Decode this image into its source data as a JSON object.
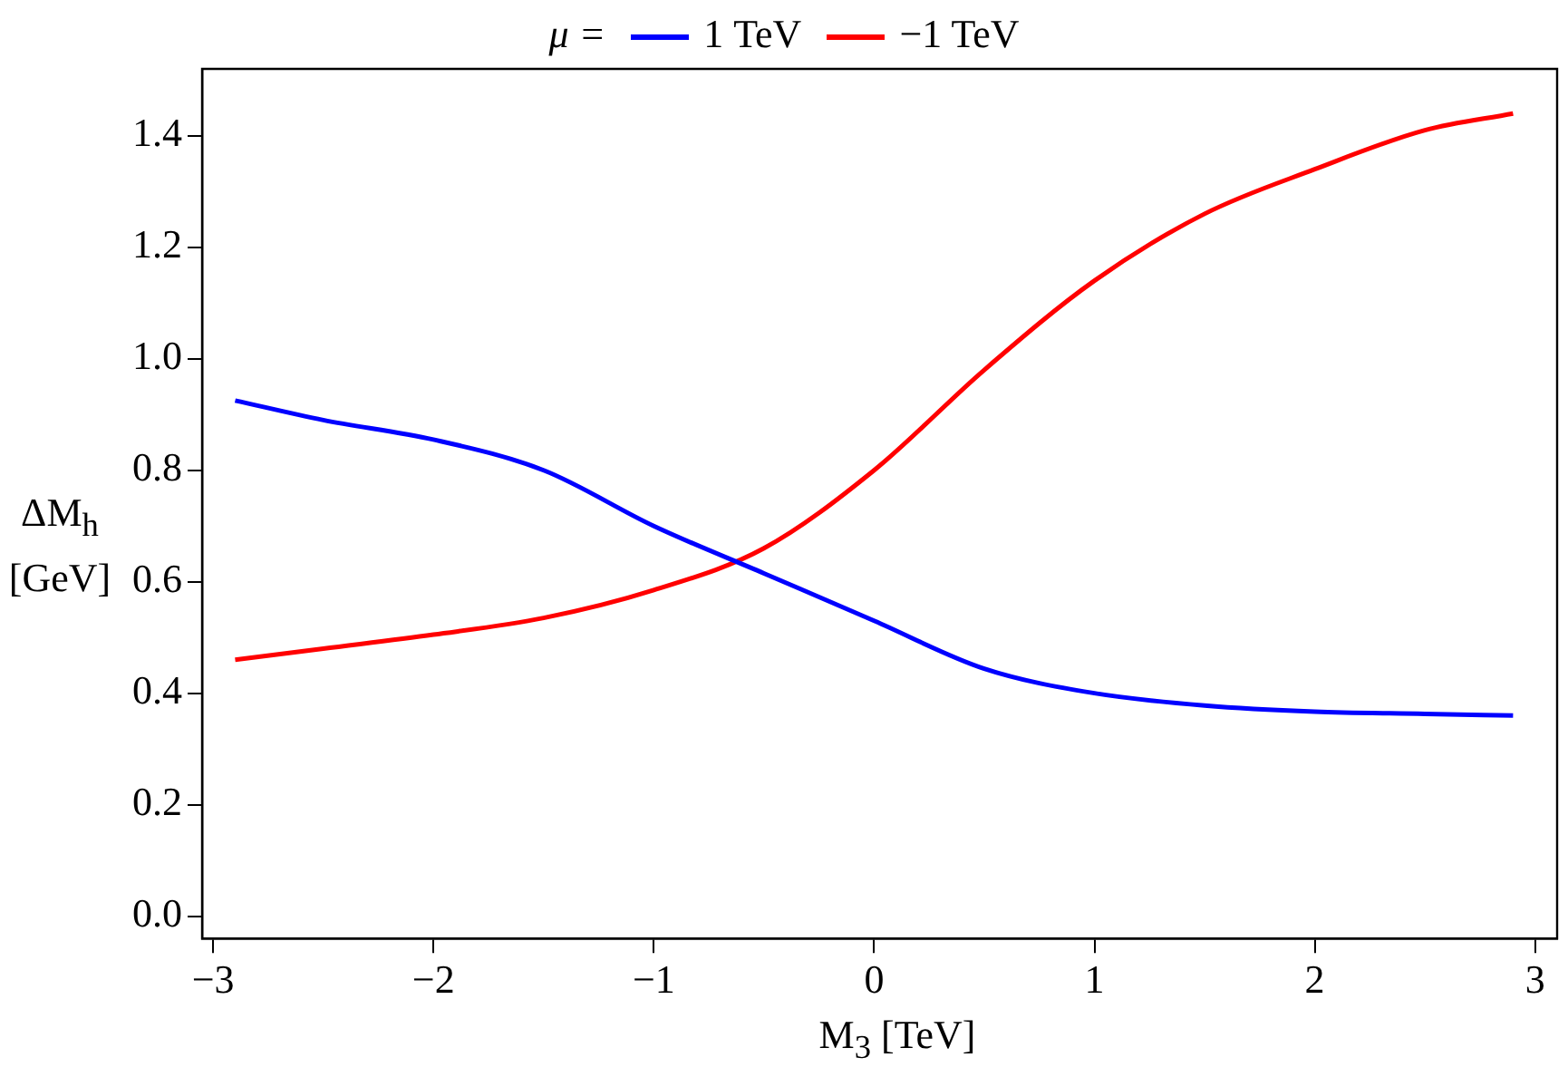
{
  "chart_data": {
    "type": "line",
    "xlabel": "M$_{3}$ [TeV]",
    "ylabel": "ΔM$_{h}$ [GeV]",
    "legend_title": "μ =",
    "legend": "top",
    "grid": false,
    "marker": "none",
    "line_style": "solid",
    "xlim": [
      -3.05,
      3.1
    ],
    "ylim": [
      -0.04,
      1.52
    ],
    "xticks": [
      {
        "value": -3,
        "label": "−3"
      },
      {
        "value": -2,
        "label": "−2"
      },
      {
        "value": -1,
        "label": "−1"
      },
      0,
      1,
      2,
      3
    ],
    "yticks": [
      {
        "value": 0,
        "label": "0.0"
      },
      0.2,
      0.4,
      0.6,
      0.8,
      {
        "value": 1,
        "label": "1.0"
      },
      1.2,
      1.4
    ],
    "x": [
      -2.9,
      -2.5,
      -2,
      -1.5,
      -1,
      -0.5,
      0,
      0.5,
      1,
      1.5,
      2,
      2.5,
      2.9
    ],
    "series": [
      {
        "name": "1 TeV",
        "color": "#0000ff",
        "values": [
          0.925,
          0.89,
          0.855,
          0.8,
          0.7,
          0.615,
          0.53,
          0.444,
          0.4,
          0.378,
          0.367,
          0.363,
          0.36
        ]
      },
      {
        "name": "−1 TeV",
        "color": "#ff0000",
        "values": [
          0.46,
          0.48,
          0.505,
          0.535,
          0.585,
          0.66,
          0.8,
          0.98,
          1.14,
          1.26,
          1.34,
          1.41,
          1.44
        ]
      }
    ]
  }
}
